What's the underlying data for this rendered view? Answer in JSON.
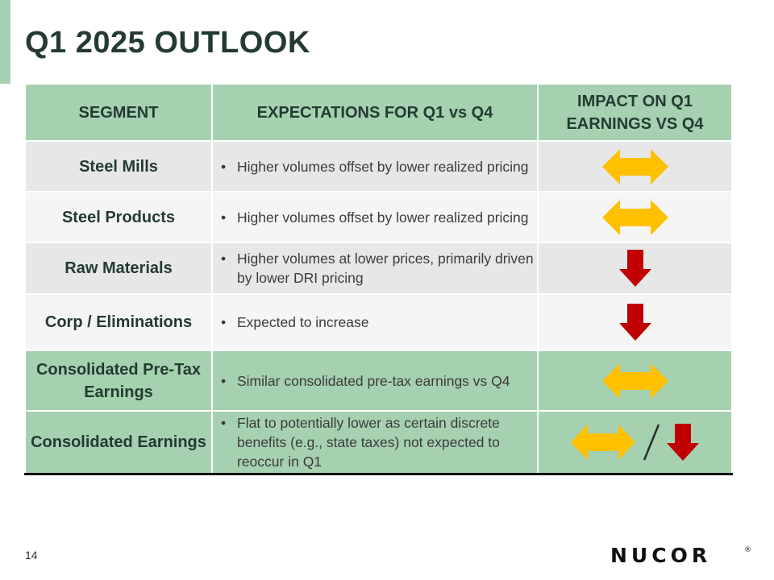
{
  "slide": {
    "title": "Q1 2025 OUTLOOK",
    "page_number": "14",
    "logo_text": "NUCOR",
    "logo_mark": "®"
  },
  "table": {
    "headers": {
      "segment": "SEGMENT",
      "expectations": "EXPECTATIONS FOR Q1 vs Q4",
      "impact": "IMPACT ON Q1 EARNINGS VS Q4"
    },
    "rows": [
      {
        "segment": "Steel Mills",
        "expectation": "Higher volumes offset by lower realized pricing",
        "impact": "neutral"
      },
      {
        "segment": "Steel Products",
        "expectation": "Higher volumes offset by lower realized pricing",
        "impact": "neutral"
      },
      {
        "segment": "Raw Materials",
        "expectation": "Higher volumes at lower prices, primarily driven by lower DRI pricing",
        "impact": "down"
      },
      {
        "segment": "Corp / Eliminations",
        "expectation": "Expected to increase",
        "impact": "down"
      },
      {
        "segment": "Consolidated Pre-Tax Earnings",
        "expectation": "Similar consolidated pre-tax earnings vs Q4",
        "impact": "neutral"
      },
      {
        "segment": "Consolidated Earnings",
        "expectation": "Flat to potentially lower as certain discrete benefits (e.g., state taxes) not expected to reoccur in Q1",
        "impact": "neutral-or-down"
      }
    ]
  },
  "colors": {
    "accent_green": "#a6d1b0",
    "title_text": "#233b32",
    "neutral_arrow": "#ffc000",
    "down_arrow": "#c00000"
  },
  "icons": {
    "neutral": "double-headed-arrow-icon",
    "down": "down-arrow-icon",
    "separator": "slash-icon"
  }
}
